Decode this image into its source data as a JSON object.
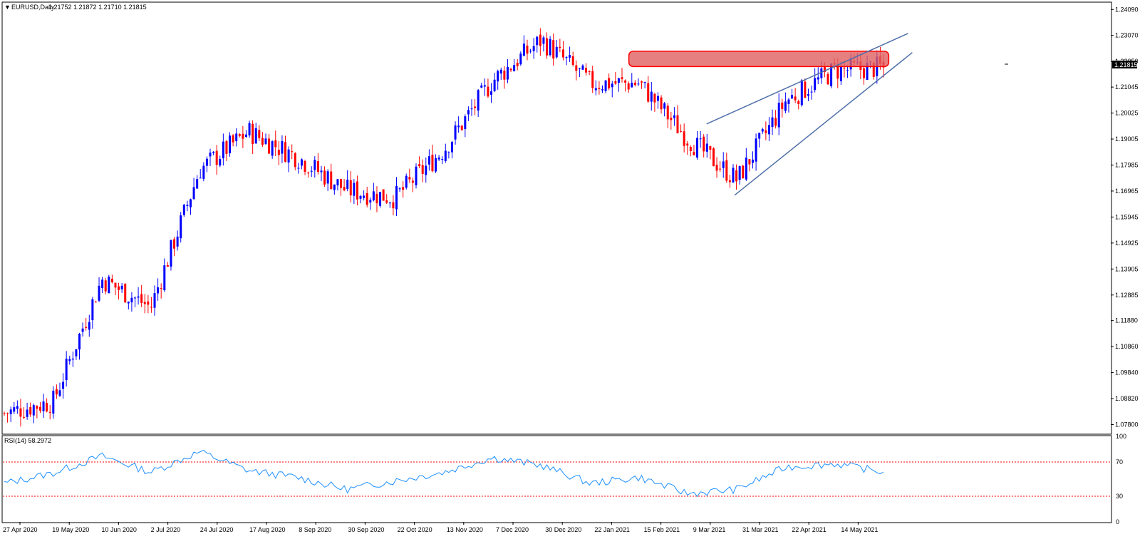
{
  "header": {
    "arrow": "▼",
    "symbol_tf": "EURUSD,Daily",
    "ohlc": "1.21752 1.21872 1.21710 1.21815"
  },
  "price_axis": {
    "ticks": [
      "1.24090",
      "1.23070",
      "1.22050",
      "1.21045",
      "1.20025",
      "1.19005",
      "1.17985",
      "1.16965",
      "1.15945",
      "1.14925",
      "1.13905",
      "1.12885",
      "1.11880",
      "1.10860",
      "1.09840",
      "1.08820",
      "1.07800"
    ],
    "current_label": "1.21815"
  },
  "rsi": {
    "label": "RSI(14) 58.2972",
    "levels": [
      70,
      30
    ],
    "axis_ticks": [
      "100",
      "70",
      "30",
      "0"
    ]
  },
  "date_axis": {
    "labels": [
      "27 Apr 2020",
      "19 May 2020",
      "10 Jun 2020",
      "2 Jul 2020",
      "24 Jul 2020",
      "17 Aug 2020",
      "8 Sep 2020",
      "30 Sep 2020",
      "22 Oct 2020",
      "13 Nov 2020",
      "7 Dec 2020",
      "30 Dec 2020",
      "22 Jan 2021",
      "15 Feb 2021",
      "9 Mar 2021",
      "31 Mar 2021",
      "22 Apr 2021",
      "14 May 2021"
    ]
  },
  "colors": {
    "bull": "#0000ff",
    "bear": "#ff0000",
    "rsi_line": "#1e90ff",
    "level_line": "#ff0000",
    "trendline": "#4f6fa8",
    "zone_fill": "#e06060",
    "zone_border": "#ff0000",
    "axis": "#000000"
  },
  "chart_data": [
    {
      "type": "candlestick",
      "symbol": "EURUSD",
      "timeframe": "Daily",
      "ylim": [
        1.0745,
        1.2435
      ],
      "last_close": 1.21815,
      "x": [
        "27 Apr 2020",
        "19 May 2020",
        "10 Jun 2020",
        "2 Jul 2020",
        "24 Jul 2020",
        "17 Aug 2020",
        "8 Sep 2020",
        "30 Sep 2020",
        "22 Oct 2020",
        "13 Nov 2020",
        "7 Dec 2020",
        "30 Dec 2020",
        "22 Jan 2021",
        "15 Feb 2021",
        "9 Mar 2021",
        "31 Mar 2021",
        "22 Apr 2021",
        "14 May 2021"
      ],
      "anchors_close": [
        1.0825,
        1.087,
        1.135,
        1.124,
        1.178,
        1.193,
        1.183,
        1.17,
        1.167,
        1.186,
        1.213,
        1.229,
        1.212,
        1.212,
        1.19,
        1.174,
        1.205,
        1.217,
        1.21815
      ],
      "annotations": {
        "resistance_zone": {
          "from": "15 Feb 2021",
          "to": "14 May 2021",
          "low": 1.2185,
          "high": 1.2245
        },
        "rising_wedge_upper": {
          "from": [
            1.196,
            "9 Mar 2021"
          ],
          "to": [
            1.2315,
            "14 May 2021"
          ]
        },
        "rising_wedge_lower": {
          "from": [
            1.168,
            "31 Mar 2021"
          ],
          "to": [
            1.224,
            "14 May 2021"
          ]
        }
      }
    },
    {
      "type": "line",
      "name": "RSI(14)",
      "ylim": [
        0,
        100
      ],
      "last_value": 58.2972,
      "levels": [
        70,
        30
      ],
      "anchors": [
        45,
        57,
        77,
        58,
        82,
        60,
        52,
        38,
        48,
        58,
        75,
        66,
        45,
        52,
        33,
        38,
        64,
        68,
        58.3
      ]
    }
  ]
}
